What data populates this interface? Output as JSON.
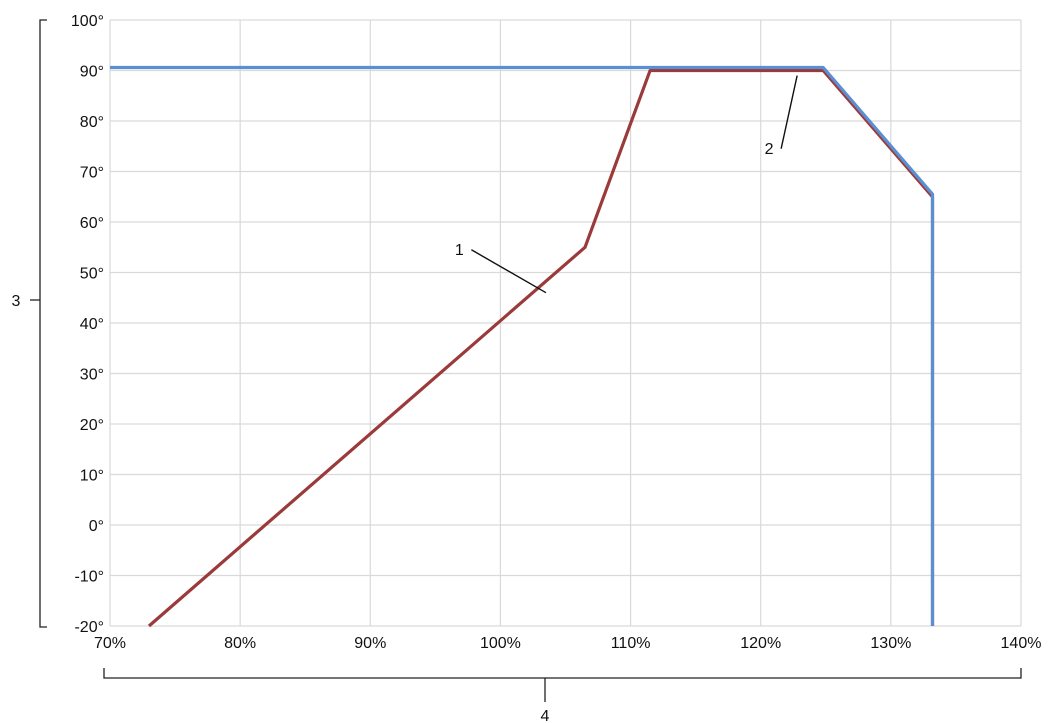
{
  "chart_data": {
    "type": "line",
    "x_ticks": [
      "70%",
      "80%",
      "90%",
      "100%",
      "110%",
      "120%",
      "130%",
      "140%"
    ],
    "y_ticks": [
      "-20°",
      "-10°",
      "0°",
      "10°",
      "20°",
      "30°",
      "40°",
      "50°",
      "60°",
      "70°",
      "80°",
      "90°",
      "100°"
    ],
    "xlim": [
      70,
      140
    ],
    "ylim": [
      -20,
      100
    ],
    "grid": true,
    "series": [
      {
        "color": "#9b3a3a",
        "points": [
          [
            73,
            -20
          ],
          [
            106.5,
            55
          ],
          [
            111.5,
            90
          ],
          [
            124.8,
            90
          ],
          [
            133.2,
            65
          ],
          [
            133.2,
            -20
          ]
        ]
      },
      {
        "color": "#5b8fd4",
        "points": [
          [
            70,
            90.6
          ],
          [
            124.8,
            90.6
          ],
          [
            133.2,
            65.5
          ],
          [
            133.2,
            -20
          ]
        ]
      }
    ],
    "callouts": [
      {
        "label": "1",
        "target": [
          103.5,
          46
        ],
        "text_at": [
          97,
          54.5
        ]
      },
      {
        "label": "2",
        "target": [
          122.8,
          89
        ],
        "text_at": [
          120.8,
          74.5
        ]
      }
    ],
    "bracket_labels": {
      "y_axis": "3",
      "x_axis": "4"
    }
  }
}
